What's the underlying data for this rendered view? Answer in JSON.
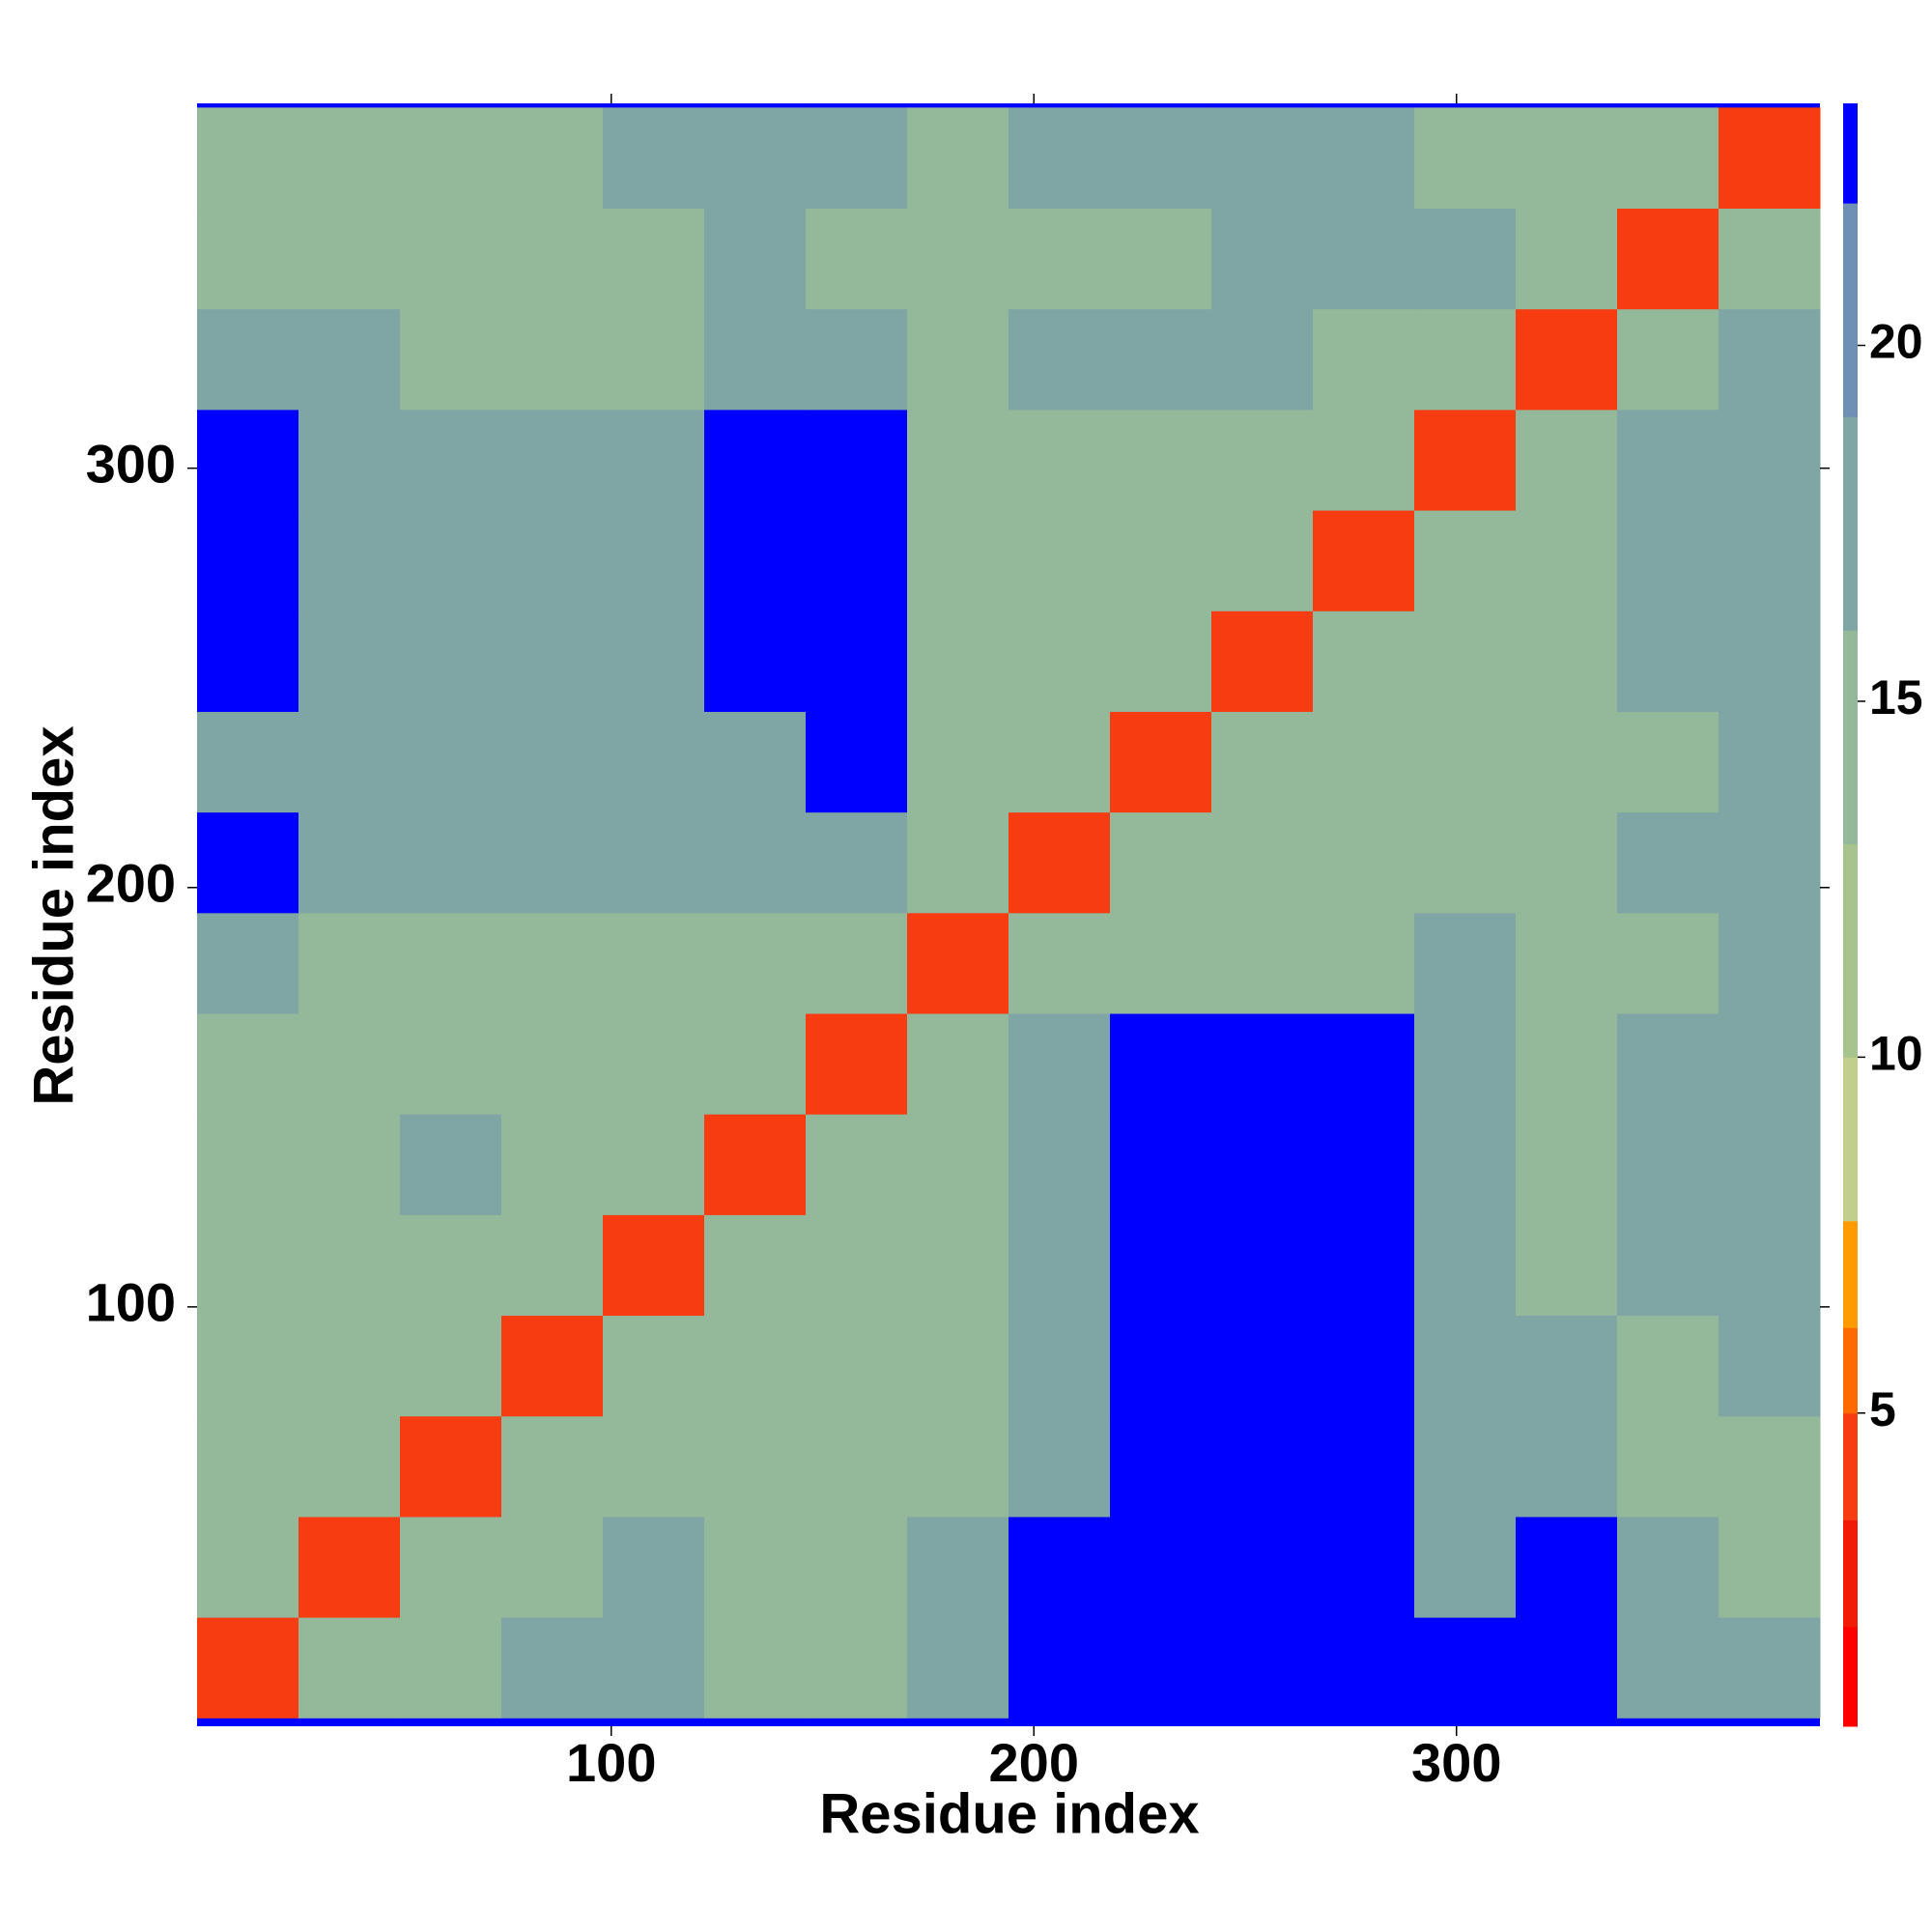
{
  "chart_data": {
    "type": "heatmap",
    "x_label": "Residue index",
    "y_label": "Residue index",
    "x_edges": [
      2,
      26,
      50,
      74,
      98,
      122,
      146,
      170,
      194,
      218,
      242,
      266,
      290,
      314,
      338,
      362,
      386
    ],
    "y_edges": [
      2,
      26,
      50,
      74,
      98,
      122,
      146,
      170,
      194,
      218,
      242,
      266,
      290,
      314,
      338,
      362,
      386
    ],
    "z": [
      [
        5,
        14,
        14,
        18,
        18,
        14,
        14,
        18,
        23,
        23,
        23,
        23,
        23,
        23,
        18,
        18
      ],
      [
        14,
        5,
        14,
        14,
        18,
        14,
        14,
        18,
        23,
        23,
        23,
        23,
        18,
        23,
        18,
        14
      ],
      [
        14,
        14,
        5,
        14,
        14,
        14,
        14,
        14,
        18,
        23,
        23,
        23,
        18,
        18,
        14,
        14
      ],
      [
        14,
        14,
        14,
        5,
        14,
        14,
        14,
        14,
        18,
        23,
        23,
        23,
        18,
        18,
        14,
        18
      ],
      [
        14,
        14,
        14,
        14,
        5,
        14,
        14,
        14,
        18,
        23,
        23,
        23,
        18,
        14,
        18,
        18
      ],
      [
        14,
        14,
        18,
        14,
        14,
        5,
        14,
        14,
        18,
        23,
        23,
        23,
        18,
        14,
        18,
        18
      ],
      [
        14,
        14,
        14,
        14,
        14,
        14,
        5,
        14,
        18,
        23,
        23,
        23,
        18,
        14,
        18,
        18
      ],
      [
        18,
        14,
        14,
        14,
        14,
        14,
        14,
        5,
        14,
        14,
        14,
        14,
        18,
        14,
        14,
        18
      ],
      [
        23,
        18,
        18,
        18,
        18,
        18,
        18,
        14,
        5,
        14,
        14,
        14,
        14,
        14,
        18,
        18
      ],
      [
        18,
        18,
        18,
        18,
        18,
        18,
        23,
        14,
        14,
        5,
        14,
        14,
        14,
        14,
        14,
        18
      ],
      [
        23,
        18,
        18,
        18,
        18,
        23,
        23,
        14,
        14,
        14,
        5,
        14,
        14,
        14,
        18,
        18
      ],
      [
        23,
        18,
        18,
        18,
        18,
        23,
        23,
        14,
        14,
        14,
        14,
        5,
        14,
        14,
        18,
        18
      ],
      [
        23,
        18,
        18,
        18,
        18,
        23,
        23,
        14,
        14,
        14,
        14,
        14,
        5,
        14,
        18,
        18
      ],
      [
        18,
        18,
        14,
        14,
        14,
        18,
        18,
        14,
        18,
        18,
        18,
        14,
        14,
        5,
        14,
        18
      ],
      [
        14,
        14,
        14,
        14,
        14,
        18,
        14,
        14,
        14,
        14,
        18,
        18,
        18,
        14,
        5,
        14
      ],
      [
        14,
        14,
        14,
        14,
        18,
        18,
        18,
        14,
        18,
        18,
        18,
        18,
        14,
        14,
        14,
        5
      ]
    ],
    "xlim": [
      2,
      386
    ],
    "ylim": [
      0,
      387
    ],
    "xticks": [
      100,
      200,
      300
    ],
    "yticks": [
      100,
      200,
      300
    ],
    "colorbar": {
      "lim": [
        0.6,
        23.4
      ],
      "ticks": [
        5,
        10,
        15,
        20
      ],
      "levels": [
        0.6,
        2,
        3.5,
        5,
        6.2,
        7.7,
        10,
        13,
        16,
        19,
        22,
        23.4
      ],
      "colors": [
        "#ff0000",
        "#f01c08",
        "#f73c12",
        "#ff6a00",
        "#ff9a00",
        "#c2cf8c",
        "#a8c48e",
        "#93b89a",
        "#7fa5a5",
        "#6d90b4",
        "#0000ff"
      ]
    }
  }
}
